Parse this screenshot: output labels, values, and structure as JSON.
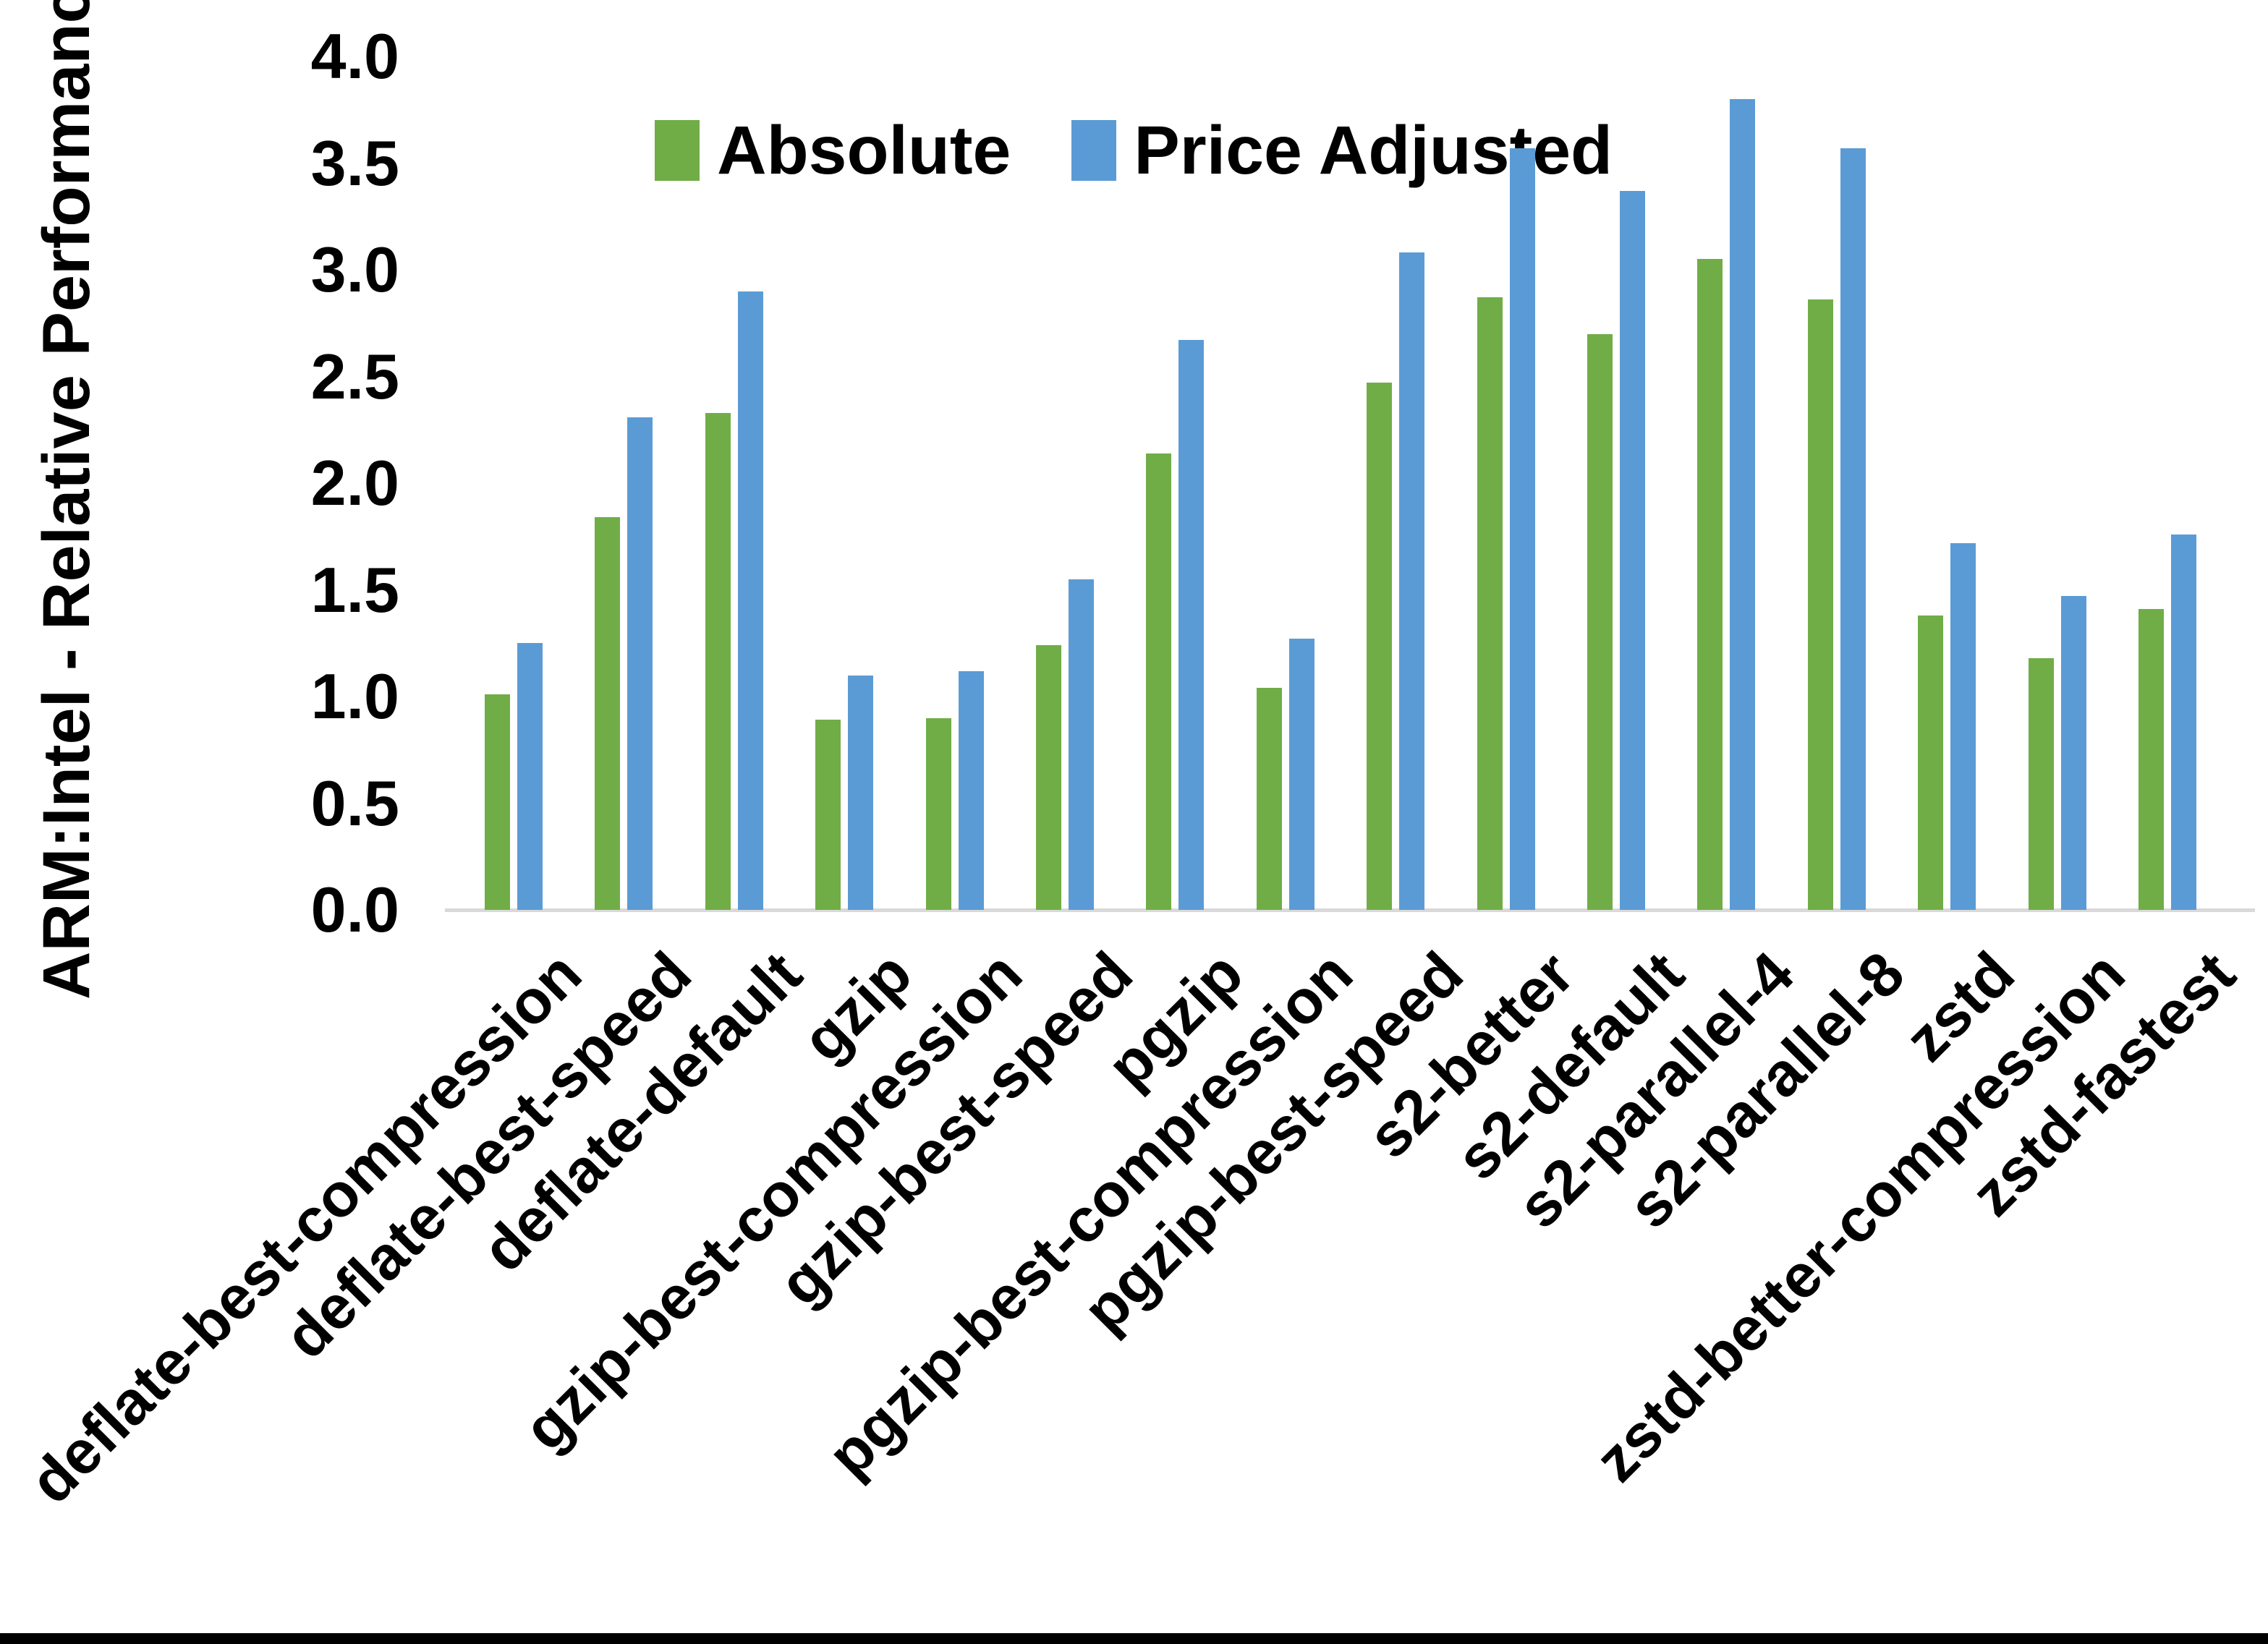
{
  "page": {
    "background": "#FFFFFF",
    "bottom_border_color": "#000000"
  },
  "chart_data": {
    "type": "bar",
    "title": "",
    "xlabel": "",
    "ylabel": "ARM:Intel - Relative Performance",
    "ylim": [
      0.0,
      4.0
    ],
    "ytick_step": 0.5,
    "yticks": [
      "0.0",
      "0.5",
      "1.0",
      "1.5",
      "2.0",
      "2.5",
      "3.0",
      "3.5",
      "4.0"
    ],
    "grid": false,
    "legend_position": "top-center",
    "axis_line_color": "#D9D9D9",
    "text_color": "#000000",
    "categories": [
      "deflate-best-compression",
      "deflate-best-speed",
      "deflate-default",
      "gzip",
      "gzip-best-compression",
      "gzip-best-speed",
      "pgzip",
      "pgzip-best-compression",
      "pgzip-best-speed",
      "s2-better",
      "s2-default",
      "s2-parallel-4",
      "s2-parallel-8",
      "zstd",
      "zstd-better-compression",
      "zstd-fastest"
    ],
    "series": [
      {
        "name": "Absolute",
        "color": "#70AD47",
        "values": [
          1.01,
          1.84,
          2.33,
          0.89,
          0.9,
          1.24,
          2.14,
          1.04,
          2.47,
          2.87,
          2.7,
          3.05,
          2.86,
          1.38,
          1.18,
          1.41
        ]
      },
      {
        "name": "Price Adjusted",
        "color": "#5B9BD5",
        "values": [
          1.25,
          2.31,
          2.9,
          1.1,
          1.12,
          1.55,
          2.67,
          1.27,
          3.08,
          3.57,
          3.37,
          3.8,
          3.57,
          1.72,
          1.47,
          1.76
        ]
      }
    ]
  }
}
